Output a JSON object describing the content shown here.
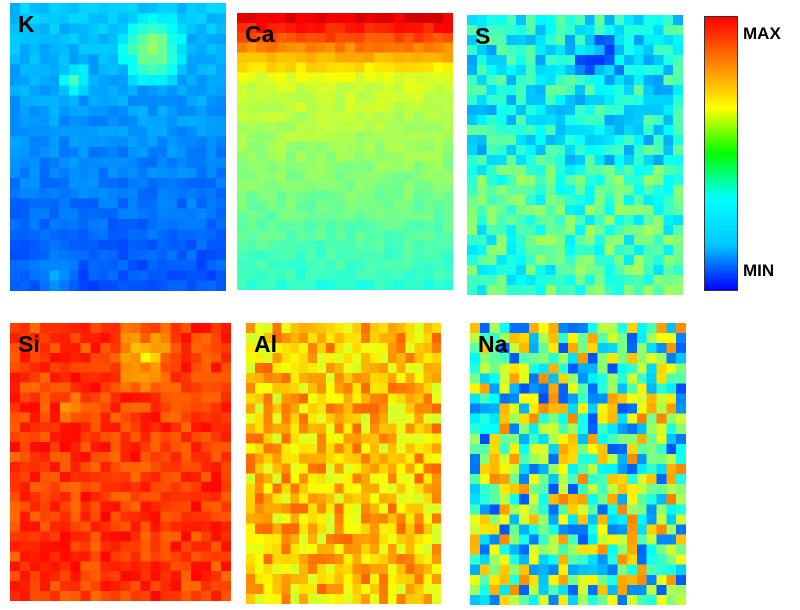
{
  "maps": [
    {
      "id": "K",
      "label": "K",
      "profile": "k"
    },
    {
      "id": "Ca",
      "label": "Ca",
      "profile": "ca"
    },
    {
      "id": "S",
      "label": "S",
      "profile": "s"
    },
    {
      "id": "Si",
      "label": "Si",
      "profile": "si"
    },
    {
      "id": "Al",
      "label": "Al",
      "profile": "al"
    },
    {
      "id": "Na",
      "label": "Na",
      "profile": "na"
    }
  ],
  "scale": {
    "max_label": "MAX",
    "min_label": "MIN",
    "colors": [
      "#0000ff",
      "#00c8ff",
      "#00ffff",
      "#00ff00",
      "#ffff00",
      "#ff8000",
      "#ff0000"
    ]
  }
}
